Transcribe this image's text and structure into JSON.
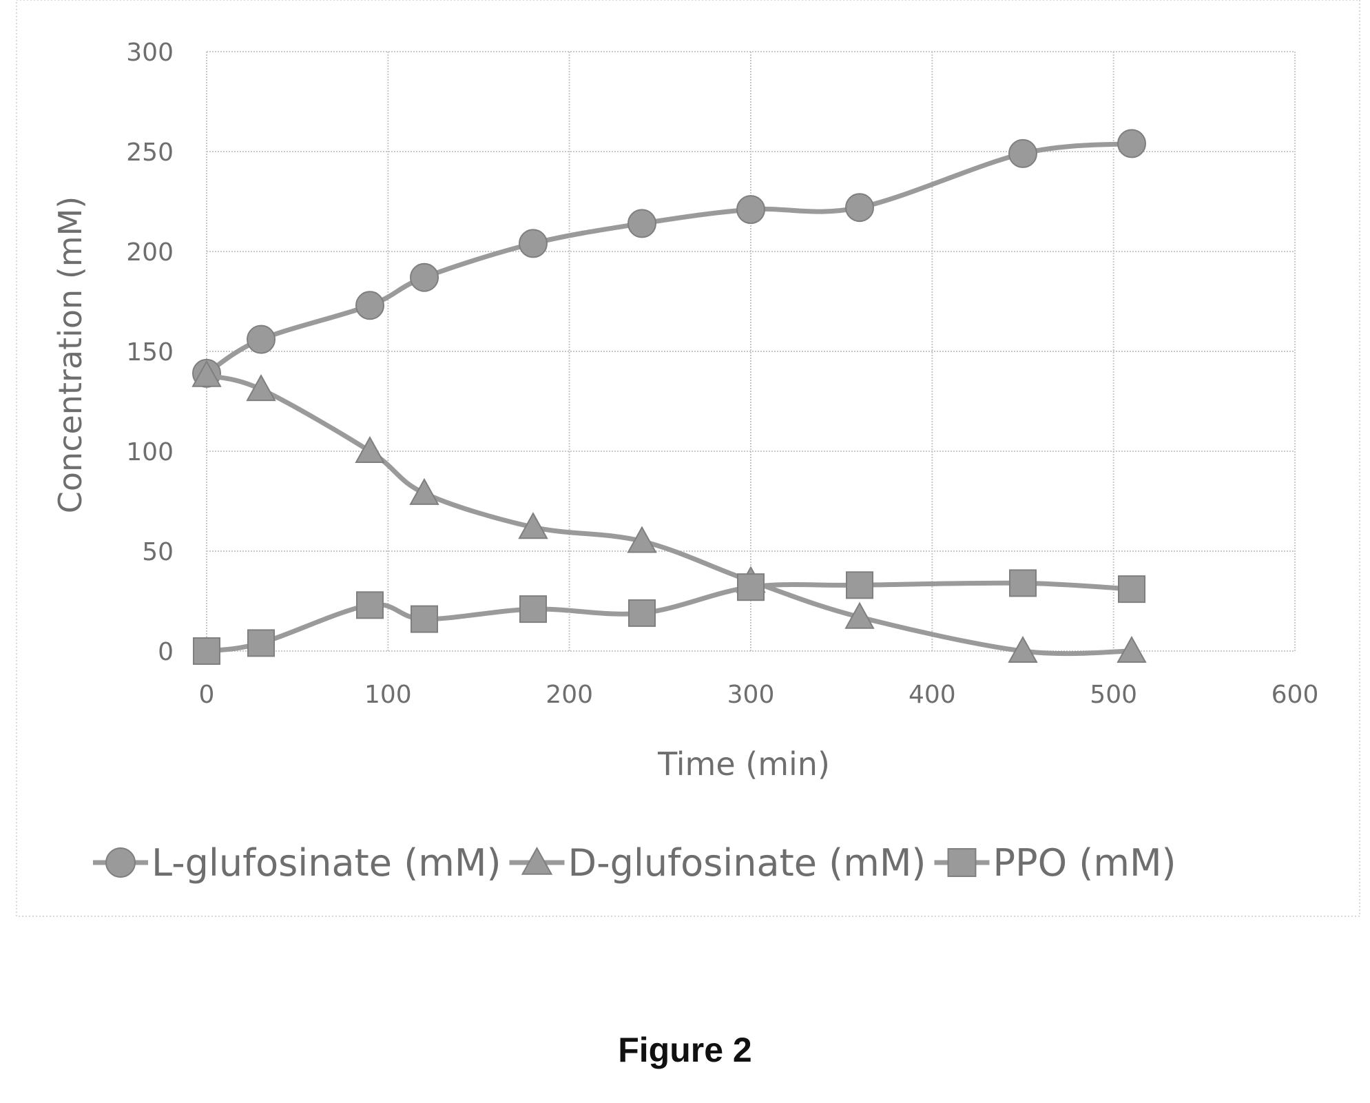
{
  "caption": "Figure 2",
  "chart_data": {
    "type": "line",
    "xlabel": "Time (min)",
    "ylabel": "Concentration (mM)",
    "xlim": [
      0,
      600
    ],
    "ylim": [
      0,
      300
    ],
    "xticks": [
      0,
      100,
      200,
      300,
      400,
      500,
      600
    ],
    "yticks": [
      0,
      50,
      100,
      150,
      200,
      250,
      300
    ],
    "grid": true,
    "legend_position": "bottom",
    "series": [
      {
        "name": "L-glufosinate (mM)",
        "marker": "circle",
        "color": "#9a9a9a",
        "x": [
          0,
          30,
          90,
          120,
          180,
          240,
          300,
          360,
          450,
          510
        ],
        "y": [
          139,
          156,
          173,
          187,
          204,
          214,
          221,
          222,
          249,
          254
        ]
      },
      {
        "name": "D-glufosinate (mM)",
        "marker": "triangle",
        "color": "#9a9a9a",
        "x": [
          0,
          30,
          90,
          120,
          180,
          240,
          300,
          360,
          450,
          510
        ],
        "y": [
          138,
          131,
          100,
          79,
          62,
          55,
          35,
          17,
          0,
          0
        ]
      },
      {
        "name": "PPO (mM)",
        "marker": "square",
        "color": "#9a9a9a",
        "x": [
          0,
          30,
          90,
          120,
          180,
          240,
          300,
          360,
          450,
          510
        ],
        "y": [
          0,
          4,
          23,
          16,
          21,
          19,
          32,
          33,
          34,
          31
        ]
      }
    ]
  }
}
